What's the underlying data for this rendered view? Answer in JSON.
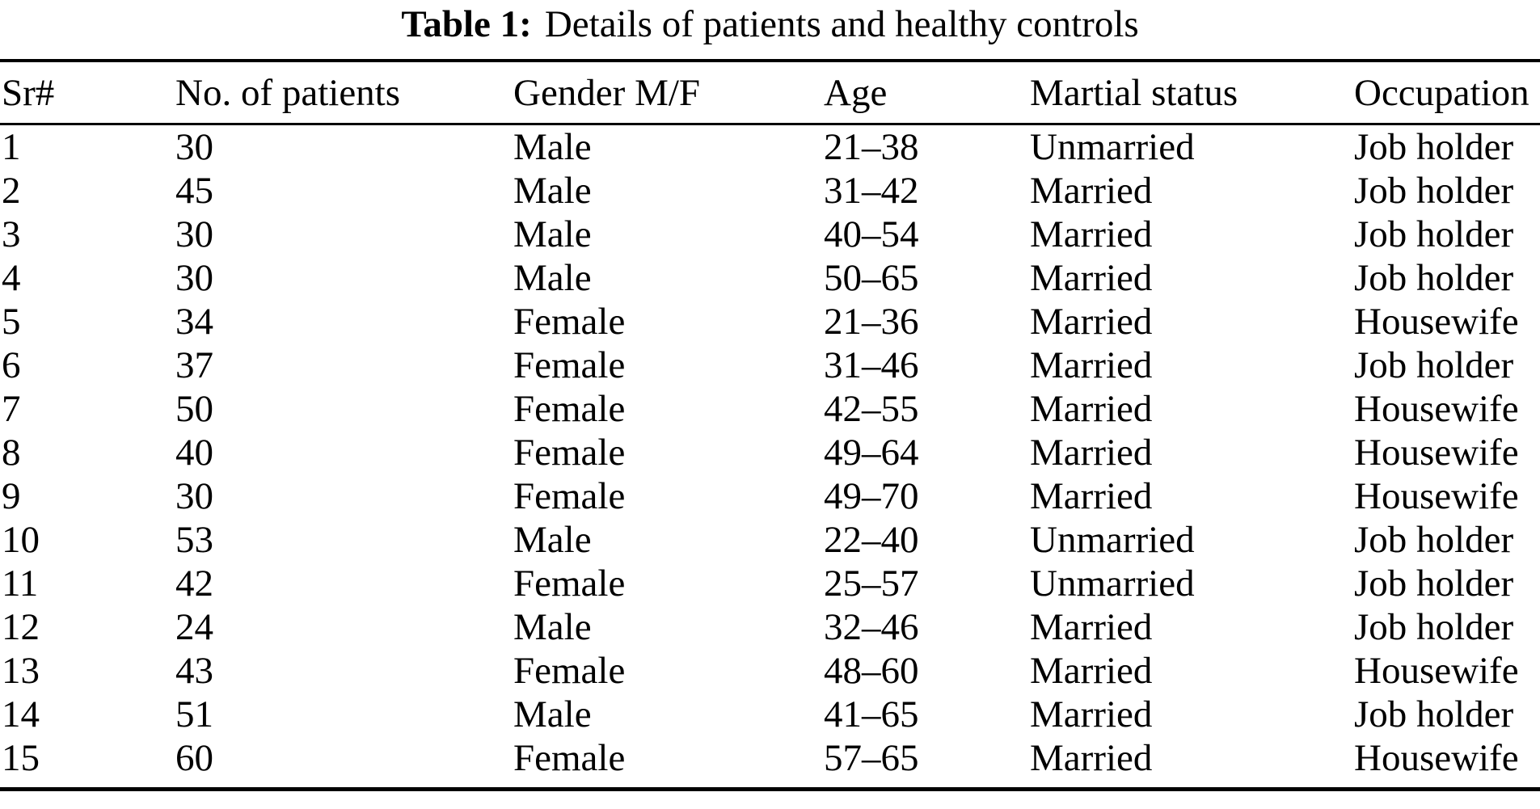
{
  "caption": {
    "label": "Table 1:",
    "text": "Details of patients and healthy controls"
  },
  "table": {
    "columns": [
      "Sr#",
      "No. of patients",
      "Gender M/F",
      "Age",
      "Martial status",
      "Occupation"
    ],
    "rows": [
      {
        "sr": "1",
        "patients": "30",
        "gender": "Male",
        "age": "21–38",
        "marital": "Unmarried",
        "occupation": "Job holder"
      },
      {
        "sr": "2",
        "patients": "45",
        "gender": "Male",
        "age": "31–42",
        "marital": "Married",
        "occupation": "Job holder"
      },
      {
        "sr": "3",
        "patients": "30",
        "gender": "Male",
        "age": "40–54",
        "marital": "Married",
        "occupation": "Job holder"
      },
      {
        "sr": "4",
        "patients": "30",
        "gender": "Male",
        "age": "50–65",
        "marital": "Married",
        "occupation": "Job holder"
      },
      {
        "sr": "5",
        "patients": "34",
        "gender": "Female",
        "age": "21–36",
        "marital": "Married",
        "occupation": "Housewife"
      },
      {
        "sr": "6",
        "patients": "37",
        "gender": "Female",
        "age": "31–46",
        "marital": "Married",
        "occupation": "Job holder"
      },
      {
        "sr": "7",
        "patients": "50",
        "gender": "Female",
        "age": "42–55",
        "marital": "Married",
        "occupation": "Housewife"
      },
      {
        "sr": "8",
        "patients": "40",
        "gender": "Female",
        "age": "49–64",
        "marital": "Married",
        "occupation": "Housewife"
      },
      {
        "sr": "9",
        "patients": "30",
        "gender": "Female",
        "age": "49–70",
        "marital": "Married",
        "occupation": "Housewife"
      },
      {
        "sr": "10",
        "patients": "53",
        "gender": "Male",
        "age": "22–40",
        "marital": "Unmarried",
        "occupation": "Job holder"
      },
      {
        "sr": "11",
        "patients": "42",
        "gender": "Female",
        "age": "25–57",
        "marital": "Unmarried",
        "occupation": "Job holder"
      },
      {
        "sr": "12",
        "patients": "24",
        "gender": "Male",
        "age": "32–46",
        "marital": "Married",
        "occupation": "Job holder"
      },
      {
        "sr": "13",
        "patients": "43",
        "gender": "Female",
        "age": "48–60",
        "marital": "Married",
        "occupation": "Housewife"
      },
      {
        "sr": "14",
        "patients": "51",
        "gender": "Male",
        "age": "41–65",
        "marital": "Married",
        "occupation": "Job holder"
      },
      {
        "sr": "15",
        "patients": "60",
        "gender": "Female",
        "age": "57–65",
        "marital": "Married",
        "occupation": "Housewife"
      }
    ]
  },
  "colors": {
    "text": "#000000",
    "background": "#ffffff",
    "rule": "#000000"
  }
}
